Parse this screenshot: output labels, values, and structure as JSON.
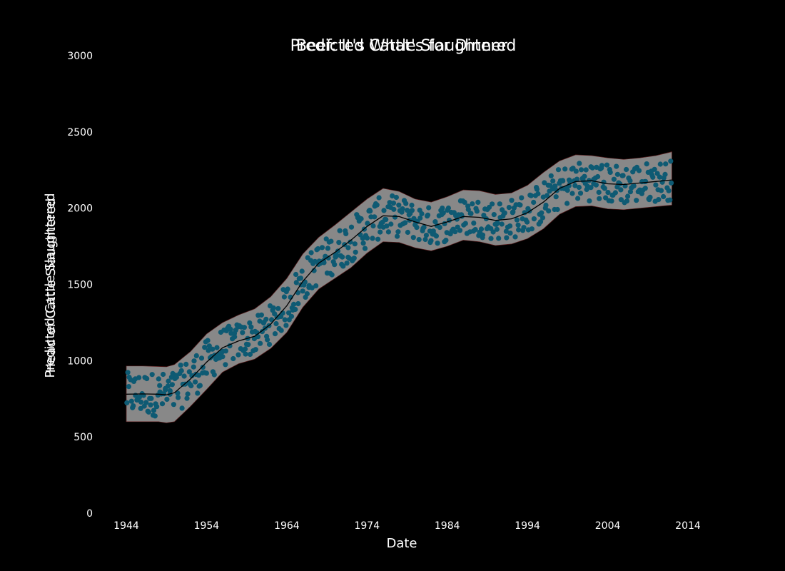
{
  "chart_data": {
    "type": "scatter",
    "title_layers": [
      "Beef: It's What's for Dinner",
      "Predicted Cattle Slaughtered"
    ],
    "xlabel": "Date",
    "ylabel_layers": [
      "Head of Cattle Slaughtered",
      "Predicted Cattle Slaughtered"
    ],
    "x_ticks": [
      "1944",
      "1954",
      "1964",
      "1974",
      "1984",
      "1994",
      "2004",
      "2014"
    ],
    "y_ticks": [
      "0",
      "500",
      "1000",
      "1500",
      "2000",
      "2500",
      "3000"
    ],
    "xlim": [
      1944,
      2014
    ],
    "ylim": [
      0,
      3000
    ],
    "grid": false,
    "colors": {
      "background": "#000000",
      "points": "#0e5a73",
      "band": "#888888",
      "line": "#000000",
      "text": "#ffffff"
    },
    "series": [
      {
        "kind": "trend",
        "x": [
          1944,
          1946,
          1948,
          1949,
          1950,
          1952,
          1954,
          1956,
          1958,
          1960,
          1962,
          1964,
          1966,
          1968,
          1970,
          1972,
          1974,
          1976,
          1978,
          1980,
          1982,
          1984,
          1986,
          1988,
          1990,
          1992,
          1994,
          1996,
          1998,
          2000,
          2002,
          2004,
          2006,
          2008,
          2010,
          2012
        ],
        "y": [
          780,
          782,
          780,
          776,
          790,
          880,
          990,
          1085,
          1130,
          1160,
          1240,
          1360,
          1520,
          1640,
          1710,
          1790,
          1880,
          1950,
          1945,
          1910,
          1880,
          1910,
          1945,
          1940,
          1920,
          1930,
          1970,
          2040,
          2130,
          2175,
          2180,
          2160,
          2155,
          2165,
          2175,
          2185
        ]
      },
      {
        "kind": "band",
        "x": [
          1944,
          1946,
          1948,
          1949,
          1950,
          1952,
          1954,
          1956,
          1958,
          1960,
          1962,
          1964,
          1966,
          1968,
          1970,
          1972,
          1974,
          1976,
          1978,
          1980,
          1982,
          1984,
          1986,
          1988,
          1990,
          1992,
          1994,
          1996,
          1998,
          2000,
          2002,
          2004,
          2006,
          2008,
          2010,
          2012
        ],
        "upper": [
          965,
          965,
          962,
          960,
          975,
          1060,
          1175,
          1250,
          1300,
          1340,
          1420,
          1540,
          1700,
          1810,
          1890,
          1975,
          2060,
          2130,
          2110,
          2060,
          2040,
          2075,
          2120,
          2115,
          2090,
          2100,
          2150,
          2235,
          2310,
          2350,
          2345,
          2330,
          2320,
          2330,
          2345,
          2370
        ],
        "lower": [
          600,
          600,
          600,
          592,
          600,
          700,
          810,
          925,
          980,
          1010,
          1080,
          1185,
          1350,
          1470,
          1540,
          1610,
          1705,
          1780,
          1775,
          1740,
          1720,
          1750,
          1790,
          1780,
          1755,
          1765,
          1800,
          1865,
          1960,
          2010,
          2015,
          1995,
          1990,
          2000,
          2010,
          2020
        ]
      }
    ]
  }
}
